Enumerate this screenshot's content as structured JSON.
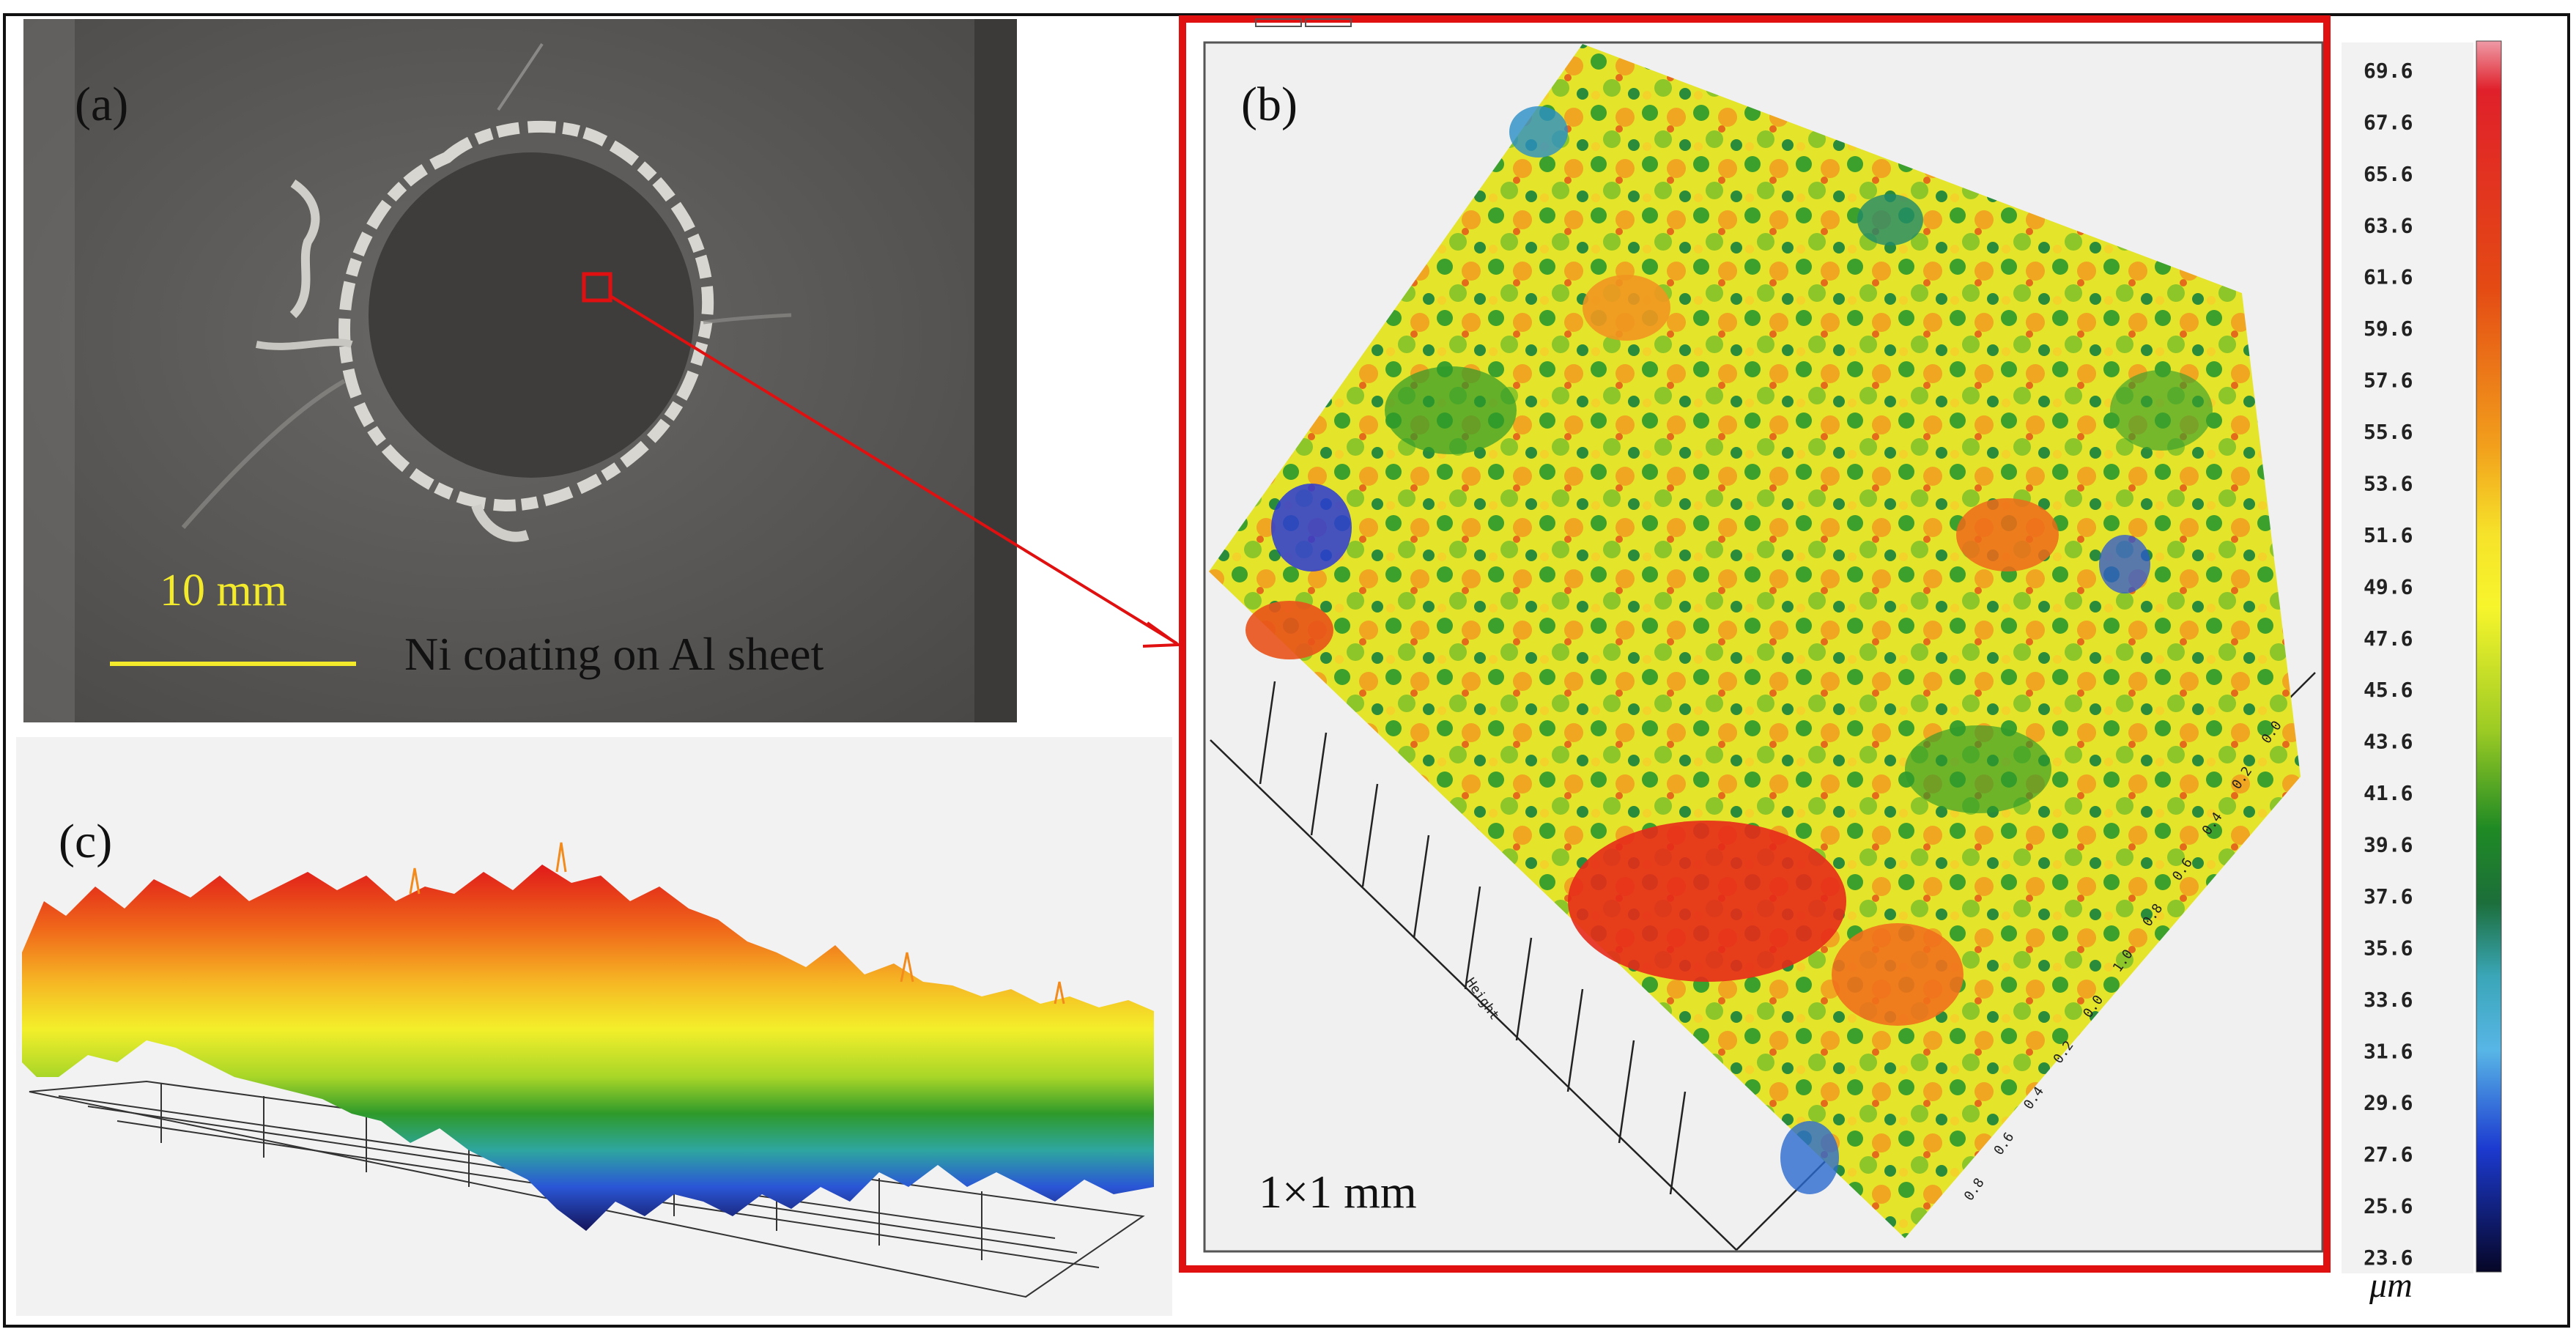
{
  "panels": {
    "a": {
      "label": "(a)",
      "scale_bar": "10 mm",
      "caption": "Ni coating on Al sheet"
    },
    "b": {
      "label": "(b)",
      "scan_size": "1×1 mm",
      "axis_label": "Height",
      "axis_ticks": [
        "0.0",
        "0.2",
        "0.4",
        "0.6",
        "0.8",
        "1.0",
        "0.0",
        "0.2",
        "0.4",
        "0.6",
        "0.8"
      ]
    },
    "c": {
      "label": "(c)"
    }
  },
  "colorbar": {
    "unit": "μm",
    "ticks": [
      "69.6",
      "67.6",
      "65.6",
      "63.6",
      "61.6",
      "59.6",
      "57.6",
      "55.6",
      "53.6",
      "51.6",
      "49.6",
      "47.6",
      "45.6",
      "43.6",
      "41.6",
      "39.6",
      "37.6",
      "35.6",
      "33.6",
      "31.6",
      "29.6",
      "27.6",
      "25.6",
      "23.6"
    ]
  },
  "colors": {
    "highlight": "#e01010",
    "scale_bar": "#f2ea2a",
    "photo_bg": "#5a5856",
    "ring": "#d6d4cf"
  }
}
